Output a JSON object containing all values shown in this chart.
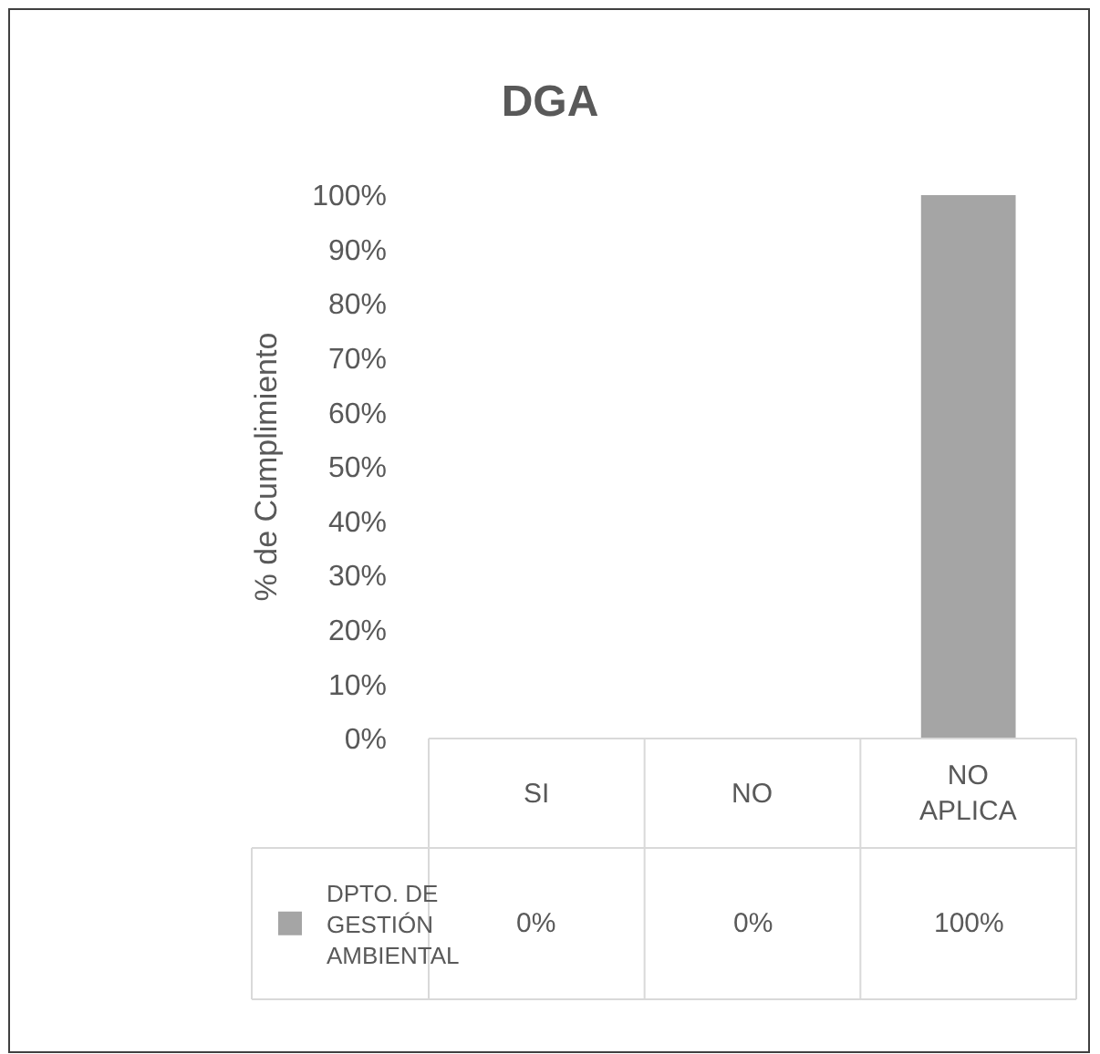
{
  "chart_data": {
    "type": "bar",
    "title": "DGA",
    "ylabel": "% de Cumplimiento",
    "categories": [
      "SI",
      "NO",
      "NO APLICA"
    ],
    "series": [
      {
        "name": "DPTO. DE GESTIÓN AMBIENTAL",
        "color": "#a5a5a5",
        "values": [
          0,
          0,
          100
        ],
        "value_labels": [
          "0%",
          "0%",
          "100%"
        ]
      }
    ],
    "ylim": [
      0,
      100
    ],
    "yticks": [
      {
        "value": 0,
        "label": "0%"
      },
      {
        "value": 10,
        "label": "10%"
      },
      {
        "value": 20,
        "label": "20%"
      },
      {
        "value": 30,
        "label": "30%"
      },
      {
        "value": 40,
        "label": "40%"
      },
      {
        "value": 50,
        "label": "50%"
      },
      {
        "value": 60,
        "label": "60%"
      },
      {
        "value": 70,
        "label": "70%"
      },
      {
        "value": 80,
        "label": "80%"
      },
      {
        "value": 90,
        "label": "90%"
      },
      {
        "value": 100,
        "label": "100%"
      }
    ],
    "grid": false,
    "legend": "bottom"
  }
}
